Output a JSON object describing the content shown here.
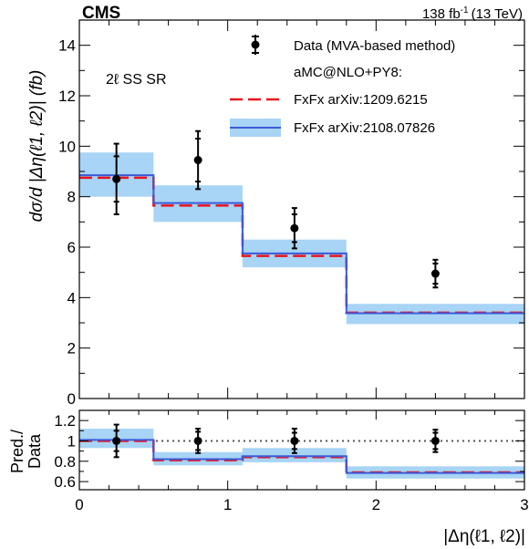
{
  "header": {
    "experiment": "CMS",
    "lumi": "138 fb",
    "lumi_sup": "-1",
    "energy": "(13 TeV)"
  },
  "region_label": "2ℓ SS SR",
  "legend": {
    "data_label": "Data (MVA-based method)",
    "generator_label": "aMC@NLO+PY8:",
    "pred1_label": "FxFx arXiv:1209.6215",
    "pred2_label": "FxFx arXiv:2108.07826"
  },
  "colors": {
    "data": "#000000",
    "pred1_line": "#e8141c",
    "pred2_line": "#3a5bd9",
    "pred2_band": "#a8d4f5"
  },
  "chart_data": [
    {
      "type": "histogram",
      "panel": "main",
      "ylabel": "dσ/d |Δη(ℓ1, ℓ2)| (fb)",
      "xlim": [
        0,
        3
      ],
      "ylim": [
        0,
        15
      ],
      "xticks": [
        0,
        1,
        2,
        3
      ],
      "yticks": [
        0,
        2,
        4,
        6,
        8,
        10,
        12,
        14
      ],
      "bin_edges": [
        0,
        0.5,
        1.1,
        1.8,
        3.0
      ],
      "series": [
        {
          "name": "Data (MVA-based method)",
          "kind": "points",
          "x": [
            0.25,
            0.8,
            1.45,
            2.4
          ],
          "y": [
            8.7,
            9.45,
            6.75,
            4.95
          ],
          "y_err_up": [
            1.4,
            1.15,
            0.8,
            0.55
          ],
          "y_err_down": [
            1.4,
            1.15,
            0.8,
            0.55
          ],
          "stat_err_up": [
            0.9,
            0.85,
            0.55,
            0.4
          ],
          "stat_err_down": [
            0.9,
            0.85,
            0.55,
            0.4
          ]
        },
        {
          "name": "FxFx arXiv:1209.6215",
          "kind": "step-dashed",
          "values": [
            8.75,
            7.65,
            5.65,
            3.4
          ]
        },
        {
          "name": "FxFx arXiv:2108.07826",
          "kind": "step-band",
          "values": [
            8.85,
            7.75,
            5.75,
            3.38
          ],
          "band_low": [
            8.0,
            7.0,
            5.2,
            2.95
          ],
          "band_high": [
            9.75,
            8.45,
            6.3,
            3.75
          ]
        }
      ]
    },
    {
      "type": "ratio",
      "panel": "ratio",
      "ylabel_line1": "Pred./",
      "ylabel_line2": "Data",
      "xlabel": "|Δη(ℓ1, ℓ2)|",
      "xlim": [
        0,
        3
      ],
      "ylim": [
        0.52,
        1.3
      ],
      "xticks": [
        0,
        1,
        2,
        3
      ],
      "yticks": [
        0.6,
        0.8,
        1,
        1.2
      ],
      "reference_line": 1,
      "bin_edges": [
        0,
        0.5,
        1.1,
        1.8,
        3.0
      ],
      "series": [
        {
          "name": "Data (MVA-based method)",
          "kind": "points",
          "x": [
            0.25,
            0.8,
            1.45,
            2.4
          ],
          "y": [
            1,
            1,
            1,
            1
          ],
          "y_err_up": [
            0.16,
            0.12,
            0.12,
            0.11
          ],
          "y_err_down": [
            0.16,
            0.12,
            0.12,
            0.11
          ],
          "stat_err_up": [
            0.1,
            0.09,
            0.08,
            0.08
          ],
          "stat_err_down": [
            0.1,
            0.09,
            0.08,
            0.08
          ]
        },
        {
          "name": "FxFx arXiv:1209.6215",
          "kind": "step-dashed",
          "values": [
            1.0,
            0.81,
            0.84,
            0.69
          ]
        },
        {
          "name": "FxFx arXiv:2108.07826",
          "kind": "step-band",
          "values": [
            1.01,
            0.82,
            0.85,
            0.685
          ],
          "band_low": [
            0.93,
            0.76,
            0.79,
            0.63
          ],
          "band_high": [
            1.12,
            0.89,
            0.93,
            0.75
          ]
        }
      ]
    }
  ]
}
